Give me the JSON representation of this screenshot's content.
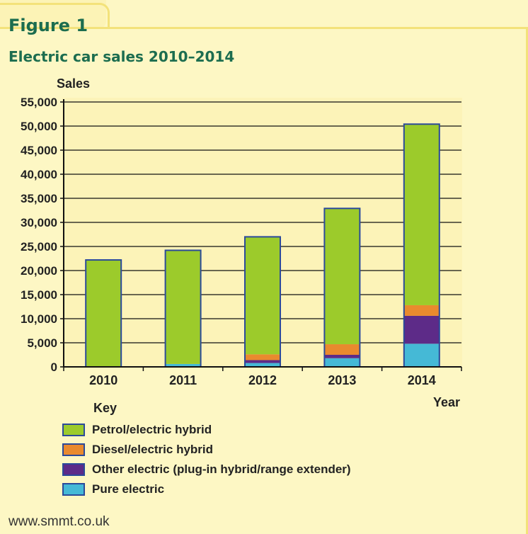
{
  "figure_label": "Figure 1",
  "source": "www.smmt.co.uk",
  "key_title": "Key",
  "chart_data": {
    "type": "bar",
    "stacked": true,
    "title": "Electric car sales 2010–2014",
    "ylabel": "Sales",
    "xlabel": "Year",
    "ylim": [
      0,
      55000
    ],
    "yticks": [
      0,
      5000,
      10000,
      15000,
      20000,
      25000,
      30000,
      35000,
      40000,
      45000,
      50000,
      55000
    ],
    "ytick_labels": [
      "0",
      "5,000",
      "10,000",
      "15,000",
      "20,000",
      "25,000",
      "30,000",
      "35,000",
      "40,000",
      "45,000",
      "50,000",
      "55,000"
    ],
    "categories": [
      "2010",
      "2011",
      "2012",
      "2013",
      "2014"
    ],
    "series": [
      {
        "name": "Pure electric",
        "color": "#45b9d6",
        "values": [
          0,
          600,
          800,
          1800,
          4800
        ]
      },
      {
        "name": "Other electric (plug-in hybrid/range extender)",
        "color": "#5d2b88",
        "values": [
          0,
          0,
          600,
          700,
          5800
        ]
      },
      {
        "name": "Diesel/electric hybrid",
        "color": "#e98a2e",
        "values": [
          0,
          0,
          1200,
          2200,
          2200
        ]
      },
      {
        "name": "Petrol/electric hybrid",
        "color": "#9ccb2b",
        "values": [
          22200,
          23600,
          24400,
          28200,
          37600
        ]
      }
    ],
    "legend_order": [
      "Petrol/electric hybrid",
      "Diesel/electric hybrid",
      "Other electric (plug-in hybrid/range extender)",
      "Pure electric"
    ],
    "grid": true,
    "legend_position": "bottom-left"
  }
}
